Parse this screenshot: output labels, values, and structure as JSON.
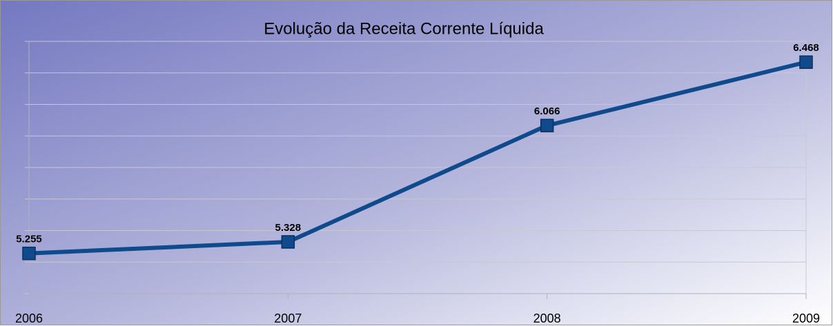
{
  "chart_data": {
    "type": "line",
    "title": "Evolução da Receita Corrente Líquida",
    "categories": [
      "2006",
      "2007",
      "2008",
      "2009"
    ],
    "series": [
      {
        "name": "Receita Corrente Líquida",
        "color": "#0f4a8c",
        "values": [
          5.255,
          5.328,
          6.066,
          6.468
        ]
      }
    ],
    "ylim": [
      5,
      6.6
    ],
    "yticks": [
      5,
      5.2,
      5.4,
      5.6,
      5.8,
      6,
      6.2,
      6.4,
      6.6
    ],
    "grid": true
  }
}
